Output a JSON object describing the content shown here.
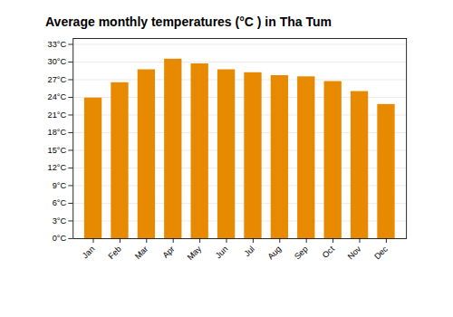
{
  "chart_data": {
    "type": "bar",
    "title": "Average monthly temperatures (°C ) in Tha Tum",
    "categories": [
      "Jan",
      "Feb",
      "Mar",
      "Apr",
      "May",
      "Jun",
      "Jul",
      "Aug",
      "Sep",
      "Oct",
      "Nov",
      "Dec"
    ],
    "values": [
      23.9,
      26.5,
      28.7,
      30.5,
      29.7,
      28.7,
      28.2,
      27.7,
      27.5,
      26.7,
      25.0,
      22.8
    ],
    "color": "#E88A00",
    "ylim": [
      0,
      34
    ],
    "yticks": [
      {
        "value": 0,
        "label": "0°C"
      },
      {
        "value": 3,
        "label": "3°C"
      },
      {
        "value": 6,
        "label": "6°C"
      },
      {
        "value": 9,
        "label": "9°C"
      },
      {
        "value": 12,
        "label": "12°C"
      },
      {
        "value": 15,
        "label": "15°C"
      },
      {
        "value": 18,
        "label": "18°C"
      },
      {
        "value": 21,
        "label": "21°C"
      },
      {
        "value": 24,
        "label": "24°C"
      },
      {
        "value": 27,
        "label": "27°C"
      },
      {
        "value": 30,
        "label": "30°C"
      },
      {
        "value": 33,
        "label": "33°C"
      }
    ],
    "grid": true
  }
}
